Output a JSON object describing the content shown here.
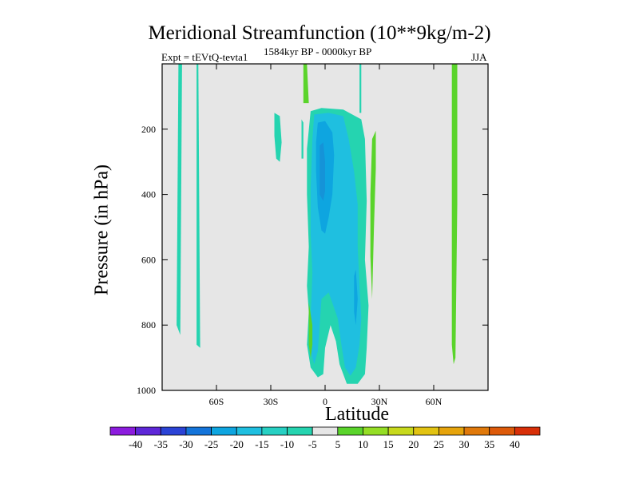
{
  "chart_data": {
    "type": "contour",
    "title": "Meridional Streamfunction (10**9kg/m-2)",
    "left_subtitle": "Expt = tEVtQ-tevta1",
    "center_subtitle": "1584kyr BP - 0000kyr BP",
    "right_subtitle": "JJA",
    "xlabel": "Latitude",
    "ylabel": "Pressure (in hPa)",
    "xlim": [
      -90,
      90
    ],
    "ylim": [
      1000,
      0
    ],
    "x_ticks": [
      {
        "value": -60,
        "label": "60S"
      },
      {
        "value": -30,
        "label": "30S"
      },
      {
        "value": 0,
        "label": "0"
      },
      {
        "value": 30,
        "label": "30N"
      },
      {
        "value": 60,
        "label": "60N"
      }
    ],
    "y_ticks": [
      {
        "value": 200,
        "label": "200"
      },
      {
        "value": 400,
        "label": "400"
      },
      {
        "value": 600,
        "label": "600"
      },
      {
        "value": 800,
        "label": "800"
      },
      {
        "value": 1000,
        "label": "1000"
      }
    ],
    "background_color": "#e6e6e6",
    "contour_regions": [
      {
        "name": "cyan-strip-80s",
        "level": -10,
        "color": "#25d4b0",
        "points": [
          [
            -81,
            0
          ],
          [
            -79,
            0
          ],
          [
            -80,
            830
          ],
          [
            -82,
            800
          ]
        ]
      },
      {
        "name": "cyan-strip-70s",
        "level": -10,
        "color": "#25d4b0",
        "points": [
          [
            -71,
            0
          ],
          [
            -70,
            0
          ],
          [
            -69,
            870
          ],
          [
            -71,
            860
          ]
        ]
      },
      {
        "name": "cyan-patch-27s",
        "level": -10,
        "color": "#25d4b0",
        "points": [
          [
            -28,
            150
          ],
          [
            -25,
            160
          ],
          [
            -24,
            240
          ],
          [
            -25,
            300
          ],
          [
            -27,
            290
          ],
          [
            -28,
            220
          ]
        ]
      },
      {
        "name": "cyan-patch-13s",
        "level": -10,
        "color": "#25d4b0",
        "points": [
          [
            -13,
            170
          ],
          [
            -12,
            180
          ],
          [
            -12,
            290
          ],
          [
            -13,
            290
          ]
        ]
      },
      {
        "name": "cyan-tongue-20n",
        "level": -10,
        "color": "#25d4b0",
        "points": [
          [
            19,
            0
          ],
          [
            20,
            0
          ],
          [
            20,
            150
          ],
          [
            19,
            150
          ]
        ]
      },
      {
        "name": "cyan-main",
        "level": -10,
        "color": "#25d4b0",
        "points": [
          [
            -8,
            145
          ],
          [
            -2,
            135
          ],
          [
            10,
            140
          ],
          [
            20,
            170
          ],
          [
            22,
            230
          ],
          [
            23,
            420
          ],
          [
            22,
            600
          ],
          [
            24,
            740
          ],
          [
            23,
            870
          ],
          [
            22,
            950
          ],
          [
            18,
            980
          ],
          [
            12,
            980
          ],
          [
            8,
            920
          ],
          [
            6,
            850
          ],
          [
            3,
            800
          ],
          [
            0,
            870
          ],
          [
            -1,
            950
          ],
          [
            -4,
            960
          ],
          [
            -8,
            930
          ],
          [
            -10,
            860
          ],
          [
            -9,
            760
          ],
          [
            -10,
            680
          ],
          [
            -9,
            560
          ],
          [
            -10,
            400
          ],
          [
            -10,
            260
          ]
        ]
      },
      {
        "name": "lightblue-main",
        "level": -15,
        "color": "#1fbfe0",
        "points": [
          [
            -6,
            155
          ],
          [
            2,
            150
          ],
          [
            10,
            160
          ],
          [
            13,
            230
          ],
          [
            16,
            330
          ],
          [
            18,
            430
          ],
          [
            18,
            560
          ],
          [
            19,
            680
          ],
          [
            20,
            780
          ],
          [
            19,
            860
          ],
          [
            17,
            930
          ],
          [
            14,
            955
          ],
          [
            11,
            930
          ],
          [
            9,
            860
          ],
          [
            7,
            780
          ],
          [
            2,
            700
          ],
          [
            -2,
            720
          ],
          [
            -3,
            800
          ],
          [
            -4,
            880
          ],
          [
            -6,
            920
          ],
          [
            -8,
            880
          ],
          [
            -8,
            780
          ],
          [
            -7,
            640
          ],
          [
            -8,
            520
          ],
          [
            -8,
            380
          ],
          [
            -7,
            230
          ]
        ]
      },
      {
        "name": "blue-core",
        "level": -20,
        "color": "#0ea5e0",
        "points": [
          [
            -4,
            180
          ],
          [
            0,
            175
          ],
          [
            4,
            210
          ],
          [
            5,
            280
          ],
          [
            4,
            400
          ],
          [
            2,
            470
          ],
          [
            0,
            520
          ],
          [
            -2,
            510
          ],
          [
            -4,
            440
          ],
          [
            -5,
            330
          ],
          [
            -5,
            240
          ]
        ]
      },
      {
        "name": "blue-core-inner",
        "level": -25,
        "color": "#1593d8",
        "points": [
          [
            -3,
            250
          ],
          [
            -1,
            240
          ],
          [
            0,
            300
          ],
          [
            0,
            390
          ],
          [
            -1,
            420
          ],
          [
            -3,
            400
          ],
          [
            -3,
            320
          ]
        ]
      },
      {
        "name": "blue-small-17n",
        "level": -20,
        "color": "#0ea5e0",
        "points": [
          [
            16,
            650
          ],
          [
            17,
            630
          ],
          [
            18,
            720
          ],
          [
            17,
            800
          ],
          [
            16,
            760
          ]
        ]
      },
      {
        "name": "green-patch-12s",
        "level": 5,
        "color": "#5ad42b",
        "points": [
          [
            -12,
            0
          ],
          [
            -10,
            0
          ],
          [
            -9,
            120
          ],
          [
            -12,
            120
          ]
        ]
      },
      {
        "name": "green-patch-9s",
        "level": 5,
        "color": "#5ad42b",
        "points": [
          [
            -9,
            730
          ],
          [
            -7,
            800
          ],
          [
            -7,
            860
          ],
          [
            -8,
            900
          ],
          [
            -9,
            860
          ]
        ]
      },
      {
        "name": "green-strip-25n",
        "level": 5,
        "color": "#5ad42b",
        "points": [
          [
            26,
            230
          ],
          [
            28,
            205
          ],
          [
            28,
            320
          ],
          [
            27,
            500
          ],
          [
            26,
            720
          ],
          [
            25,
            590
          ],
          [
            25,
            400
          ]
        ]
      },
      {
        "name": "green-strip-71n",
        "level": 5,
        "color": "#5ad42b",
        "points": [
          [
            70,
            0
          ],
          [
            73,
            0
          ],
          [
            73,
            430
          ],
          [
            72,
            900
          ],
          [
            71,
            920
          ],
          [
            70,
            860
          ],
          [
            70,
            480
          ]
        ]
      }
    ],
    "colorbar": {
      "labels": [
        "-40",
        "-35",
        "-30",
        "-25",
        "-20",
        "-15",
        "-10",
        "-5",
        "5",
        "10",
        "15",
        "20",
        "25",
        "30",
        "35",
        "40"
      ],
      "colors": [
        "#8c1cde",
        "#5e27d8",
        "#2b43d6",
        "#1474da",
        "#0ea5e0",
        "#1fbfe0",
        "#27d0c3",
        "#25d4b0",
        "#e6e6e6",
        "#5ad42b",
        "#95de25",
        "#c7d91c",
        "#e2c312",
        "#e6a40c",
        "#e0790b",
        "#dd5a0a",
        "#d82f08"
      ]
    }
  }
}
